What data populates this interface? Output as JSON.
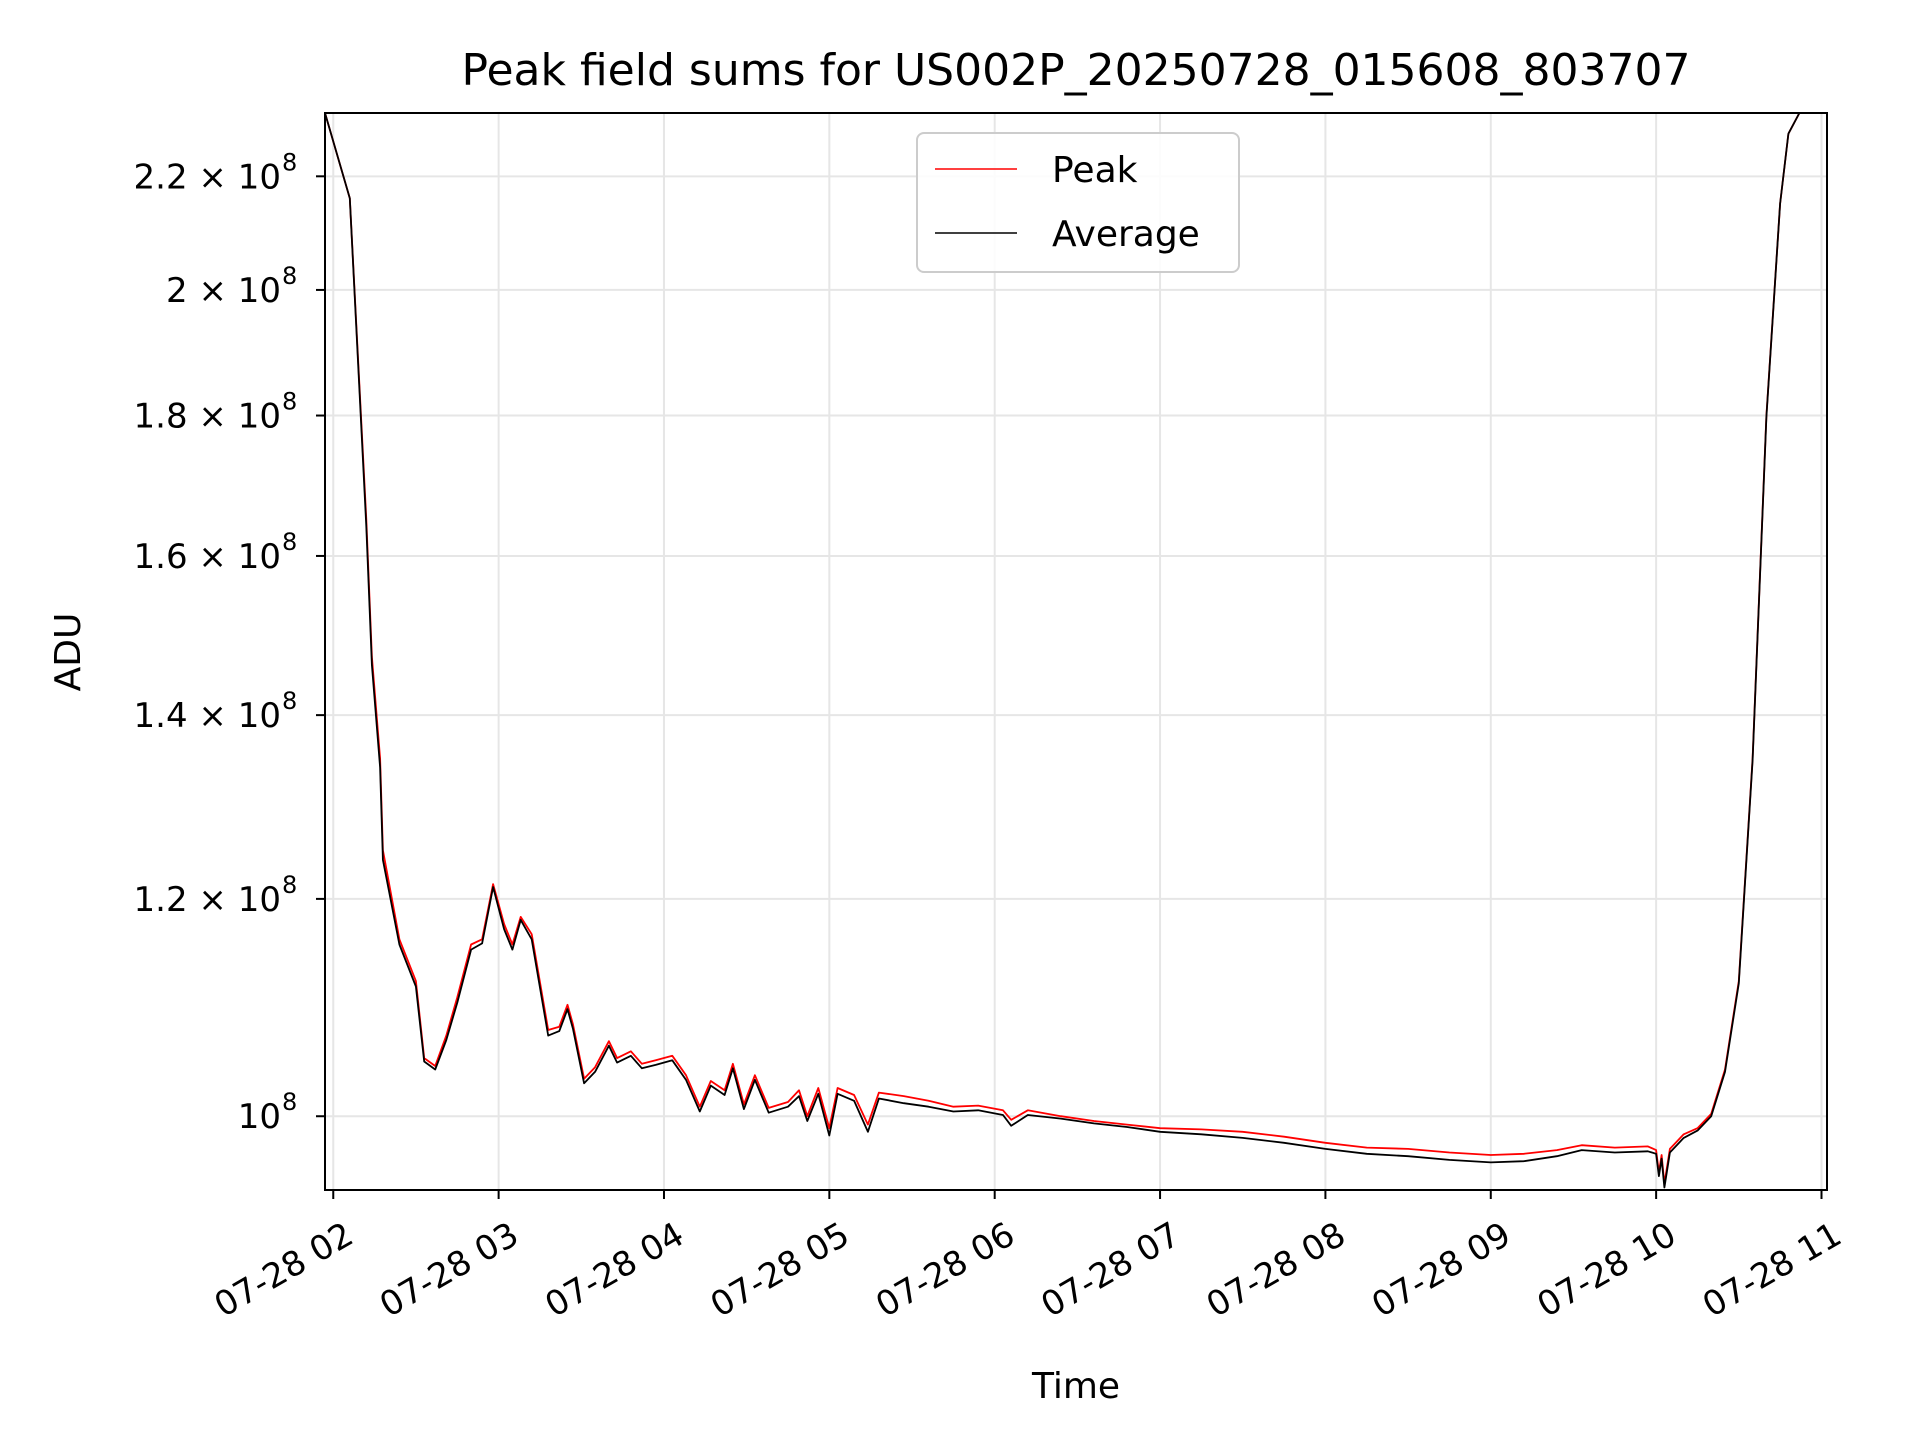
{
  "chart_data": {
    "type": "line",
    "title": "Peak field sums for US002P_20250728_015608_803707",
    "xlabel": "Time",
    "ylabel": "ADU",
    "x_start": "07-28 01:57",
    "x_end": "07-28 11:00",
    "xlim": [
      "07-28 01:57",
      "07-28 11:02"
    ],
    "ylim": [
      94000000,
      232000000
    ],
    "yscale": "log",
    "grid": true,
    "legend_position": "upper center",
    "x_ticks": [
      {
        "value": "07-28 02:00",
        "label": "07-28 02"
      },
      {
        "value": "07-28 03:00",
        "label": "07-28 03"
      },
      {
        "value": "07-28 04:00",
        "label": "07-28 04"
      },
      {
        "value": "07-28 05:00",
        "label": "07-28 05"
      },
      {
        "value": "07-28 06:00",
        "label": "07-28 06"
      },
      {
        "value": "07-28 07:00",
        "label": "07-28 07"
      },
      {
        "value": "07-28 08:00",
        "label": "07-28 08"
      },
      {
        "value": "07-28 09:00",
        "label": "07-28 09"
      },
      {
        "value": "07-28 10:00",
        "label": "07-28 10"
      },
      {
        "value": "07-28 11:00",
        "label": "07-28 11"
      }
    ],
    "y_ticks": [
      {
        "value": 100000000,
        "mantissa": "",
        "exp": "8"
      },
      {
        "value": 120000000,
        "mantissa": "1.2",
        "exp": "8"
      },
      {
        "value": 140000000,
        "mantissa": "1.4",
        "exp": "8"
      },
      {
        "value": 160000000,
        "mantissa": "1.6",
        "exp": "8"
      },
      {
        "value": 180000000,
        "mantissa": "1.8",
        "exp": "8"
      },
      {
        "value": 200000000,
        "mantissa": "2",
        "exp": "8"
      },
      {
        "value": 220000000,
        "mantissa": "2.2",
        "exp": "8"
      }
    ],
    "y_tick_times": "×",
    "y_tick_base": "10",
    "series": [
      {
        "name": "Peak",
        "color": "#ff0000",
        "points": [
          [
            "07-28 01:57",
            232000000
          ],
          [
            "07-28 02:06",
            216000000
          ],
          [
            "07-28 02:12",
            165000000
          ],
          [
            "07-28 02:14",
            147000000
          ],
          [
            "07-28 02:17",
            135000000
          ],
          [
            "07-28 02:18",
            125000000
          ],
          [
            "07-28 02:24",
            116000000
          ],
          [
            "07-28 02:30",
            112000000
          ],
          [
            "07-28 02:33",
            105000000
          ],
          [
            "07-28 02:37",
            104300000
          ],
          [
            "07-28 02:41",
            107000000
          ],
          [
            "07-28 02:45",
            110500000
          ],
          [
            "07-28 02:50",
            115500000
          ],
          [
            "07-28 02:54",
            116000000
          ],
          [
            "07-28 02:58",
            121500000
          ],
          [
            "07-28 03:02",
            117500000
          ],
          [
            "07-28 03:05",
            115500000
          ],
          [
            "07-28 03:08",
            118200000
          ],
          [
            "07-28 03:12",
            116500000
          ],
          [
            "07-28 03:18",
            107500000
          ],
          [
            "07-28 03:22",
            107800000
          ],
          [
            "07-28 03:25",
            109800000
          ],
          [
            "07-28 03:27",
            108000000
          ],
          [
            "07-28 03:31",
            103200000
          ],
          [
            "07-28 03:35",
            104200000
          ],
          [
            "07-28 03:40",
            106500000
          ],
          [
            "07-28 03:43",
            105000000
          ],
          [
            "07-28 03:48",
            105600000
          ],
          [
            "07-28 03:52",
            104500000
          ],
          [
            "07-28 03:57",
            104800000
          ],
          [
            "07-28 04:03",
            105200000
          ],
          [
            "07-28 04:08",
            103500000
          ],
          [
            "07-28 04:13",
            100800000
          ],
          [
            "07-28 04:17",
            103000000
          ],
          [
            "07-28 04:22",
            102200000
          ],
          [
            "07-28 04:25",
            104500000
          ],
          [
            "07-28 04:29",
            101000000
          ],
          [
            "07-28 04:33",
            103500000
          ],
          [
            "07-28 04:38",
            100700000
          ],
          [
            "07-28 04:45",
            101200000
          ],
          [
            "07-28 04:49",
            102200000
          ],
          [
            "07-28 04:52",
            100000000
          ],
          [
            "07-28 04:56",
            102400000
          ],
          [
            "07-28 05:00",
            99000000
          ],
          [
            "07-28 05:03",
            102400000
          ],
          [
            "07-28 05:09",
            101800000
          ],
          [
            "07-28 05:14",
            99300000
          ],
          [
            "07-28 05:18",
            102000000
          ],
          [
            "07-28 05:27",
            101700000
          ],
          [
            "07-28 05:36",
            101300000
          ],
          [
            "07-28 05:45",
            100800000
          ],
          [
            "07-28 05:54",
            100900000
          ],
          [
            "07-28 06:03",
            100500000
          ],
          [
            "07-28 06:06",
            99700000
          ],
          [
            "07-28 06:12",
            100500000
          ],
          [
            "07-28 06:24",
            100000000
          ],
          [
            "07-28 06:36",
            99600000
          ],
          [
            "07-28 06:48",
            99300000
          ],
          [
            "07-28 07:00",
            99000000
          ],
          [
            "07-28 07:15",
            98900000
          ],
          [
            "07-28 07:30",
            98700000
          ],
          [
            "07-28 07:45",
            98300000
          ],
          [
            "07-28 08:00",
            97800000
          ],
          [
            "07-28 08:15",
            97400000
          ],
          [
            "07-28 08:30",
            97300000
          ],
          [
            "07-28 08:45",
            97000000
          ],
          [
            "07-28 09:00",
            96800000
          ],
          [
            "07-28 09:12",
            96900000
          ],
          [
            "07-28 09:24",
            97200000
          ],
          [
            "07-28 09:33",
            97600000
          ],
          [
            "07-28 09:45",
            97400000
          ],
          [
            "07-28 09:57",
            97500000
          ],
          [
            "07-28 10:00",
            97200000
          ],
          [
            "07-28 10:01",
            95400000
          ],
          [
            "07-28 10:02",
            96800000
          ],
          [
            "07-28 10:03",
            94500000
          ],
          [
            "07-28 10:05",
            97300000
          ],
          [
            "07-28 10:10",
            98500000
          ],
          [
            "07-28 10:15",
            99000000
          ],
          [
            "07-28 10:20",
            100200000
          ],
          [
            "07-28 10:25",
            104000000
          ],
          [
            "07-28 10:30",
            112000000
          ],
          [
            "07-28 10:35",
            135000000
          ],
          [
            "07-28 10:40",
            180000000
          ],
          [
            "07-28 10:45",
            215000000
          ],
          [
            "07-28 10:48",
            228000000
          ],
          [
            "07-28 10:52",
            232000000
          ],
          [
            "07-28 11:00",
            232000000
          ]
        ]
      },
      {
        "name": "Average",
        "color": "#000000",
        "points": [
          [
            "07-28 01:57",
            232000000
          ],
          [
            "07-28 02:06",
            216000000
          ],
          [
            "07-28 02:12",
            164000000
          ],
          [
            "07-28 02:14",
            146000000
          ],
          [
            "07-28 02:17",
            134000000
          ],
          [
            "07-28 02:18",
            124000000
          ],
          [
            "07-28 02:24",
            115500000
          ],
          [
            "07-28 02:30",
            111500000
          ],
          [
            "07-28 02:33",
            104700000
          ],
          [
            "07-28 02:37",
            104000000
          ],
          [
            "07-28 02:41",
            106600000
          ],
          [
            "07-28 02:45",
            110000000
          ],
          [
            "07-28 02:50",
            115000000
          ],
          [
            "07-28 02:54",
            115600000
          ],
          [
            "07-28 02:58",
            121200000
          ],
          [
            "07-28 03:02",
            117000000
          ],
          [
            "07-28 03:05",
            115000000
          ],
          [
            "07-28 03:08",
            117900000
          ],
          [
            "07-28 03:12",
            116000000
          ],
          [
            "07-28 03:18",
            107000000
          ],
          [
            "07-28 03:22",
            107400000
          ],
          [
            "07-28 03:25",
            109400000
          ],
          [
            "07-28 03:27",
            107600000
          ],
          [
            "07-28 03:31",
            102800000
          ],
          [
            "07-28 03:35",
            103800000
          ],
          [
            "07-28 03:40",
            106100000
          ],
          [
            "07-28 03:43",
            104600000
          ],
          [
            "07-28 03:48",
            105200000
          ],
          [
            "07-28 03:52",
            104100000
          ],
          [
            "07-28 03:57",
            104400000
          ],
          [
            "07-28 04:03",
            104800000
          ],
          [
            "07-28 04:08",
            103100000
          ],
          [
            "07-28 04:13",
            100400000
          ],
          [
            "07-28 04:17",
            102600000
          ],
          [
            "07-28 04:22",
            101800000
          ],
          [
            "07-28 04:25",
            104100000
          ],
          [
            "07-28 04:29",
            100600000
          ],
          [
            "07-28 04:33",
            103100000
          ],
          [
            "07-28 04:38",
            100300000
          ],
          [
            "07-28 04:45",
            100800000
          ],
          [
            "07-28 04:49",
            101700000
          ],
          [
            "07-28 04:52",
            99600000
          ],
          [
            "07-28 04:56",
            101900000
          ],
          [
            "07-28 05:00",
            98400000
          ],
          [
            "07-28 05:03",
            101900000
          ],
          [
            "07-28 05:09",
            101300000
          ],
          [
            "07-28 05:14",
            98700000
          ],
          [
            "07-28 05:18",
            101500000
          ],
          [
            "07-28 05:27",
            101100000
          ],
          [
            "07-28 05:36",
            100800000
          ],
          [
            "07-28 05:45",
            100400000
          ],
          [
            "07-28 05:54",
            100500000
          ],
          [
            "07-28 06:03",
            100100000
          ],
          [
            "07-28 06:06",
            99200000
          ],
          [
            "07-28 06:12",
            100100000
          ],
          [
            "07-28 06:24",
            99800000
          ],
          [
            "07-28 06:36",
            99400000
          ],
          [
            "07-28 06:48",
            99100000
          ],
          [
            "07-28 07:00",
            98700000
          ],
          [
            "07-28 07:15",
            98500000
          ],
          [
            "07-28 07:30",
            98200000
          ],
          [
            "07-28 07:45",
            97800000
          ],
          [
            "07-28 08:00",
            97300000
          ],
          [
            "07-28 08:15",
            96900000
          ],
          [
            "07-28 08:30",
            96700000
          ],
          [
            "07-28 08:45",
            96400000
          ],
          [
            "07-28 09:00",
            96200000
          ],
          [
            "07-28 09:12",
            96300000
          ],
          [
            "07-28 09:24",
            96700000
          ],
          [
            "07-28 09:33",
            97200000
          ],
          [
            "07-28 09:45",
            97000000
          ],
          [
            "07-28 09:57",
            97100000
          ],
          [
            "07-28 10:00",
            96900000
          ],
          [
            "07-28 10:01",
            95100000
          ],
          [
            "07-28 10:02",
            96500000
          ],
          [
            "07-28 10:03",
            94200000
          ],
          [
            "07-28 10:05",
            97000000
          ],
          [
            "07-28 10:10",
            98200000
          ],
          [
            "07-28 10:15",
            98800000
          ],
          [
            "07-28 10:20",
            100000000
          ],
          [
            "07-28 10:25",
            103800000
          ],
          [
            "07-28 10:30",
            111800000
          ],
          [
            "07-28 10:35",
            134800000
          ],
          [
            "07-28 10:40",
            179800000
          ],
          [
            "07-28 10:45",
            215000000
          ],
          [
            "07-28 10:48",
            228000000
          ],
          [
            "07-28 10:52",
            232000000
          ],
          [
            "07-28 11:00",
            232000000
          ]
        ]
      }
    ]
  }
}
